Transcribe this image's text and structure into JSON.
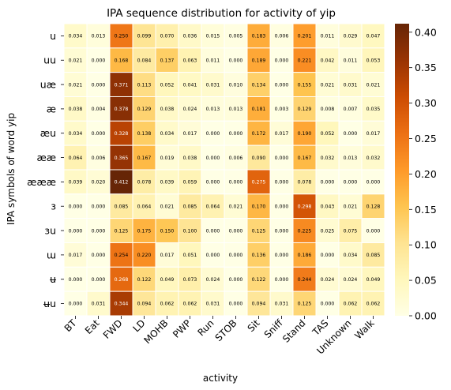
{
  "chart_data": {
    "type": "heatmap",
    "title": "IPA sequence distribution for activity of yip",
    "xlabel": "activity",
    "ylabel": "IPA symbols of word yip",
    "colormap": "YlOrBr",
    "vmin": 0.0,
    "vmax": 0.412,
    "colorbar_ticks": [
      "0.00",
      "0.05",
      "0.10",
      "0.15",
      "0.20",
      "0.25",
      "0.30",
      "0.35",
      "0.40"
    ],
    "columns": [
      "BT",
      "Eat",
      "FWD",
      "LD",
      "MOHB",
      "PWP",
      "Run",
      "STOB",
      "Sit",
      "Sniff",
      "Stand",
      "TAS",
      "Unknown",
      "Walk"
    ],
    "rows": [
      "u",
      "uu",
      "uæ",
      "æ",
      "æu",
      "ææ",
      "æææ",
      "ɜ",
      "ɜu",
      "ɯ",
      "ʉ",
      "ʉu"
    ],
    "values": [
      [
        0.034,
        0.013,
        0.25,
        0.099,
        0.07,
        0.036,
        0.015,
        0.005,
        0.183,
        0.006,
        0.201,
        0.011,
        0.029,
        0.047
      ],
      [
        0.021,
        0.0,
        0.168,
        0.084,
        0.137,
        0.063,
        0.011,
        0.0,
        0.189,
        0.0,
        0.221,
        0.042,
        0.011,
        0.053
      ],
      [
        0.021,
        0.0,
        0.371,
        0.113,
        0.052,
        0.041,
        0.031,
        0.01,
        0.134,
        0.0,
        0.155,
        0.021,
        0.031,
        0.021
      ],
      [
        0.038,
        0.004,
        0.378,
        0.129,
        0.038,
        0.024,
        0.013,
        0.013,
        0.181,
        0.003,
        0.129,
        0.008,
        0.007,
        0.035
      ],
      [
        0.034,
        0.0,
        0.328,
        0.138,
        0.034,
        0.017,
        0.0,
        0.0,
        0.172,
        0.017,
        0.19,
        0.052,
        0.0,
        0.017
      ],
      [
        0.064,
        0.006,
        0.365,
        0.167,
        0.019,
        0.038,
        0.0,
        0.006,
        0.09,
        0.0,
        0.167,
        0.032,
        0.013,
        0.032
      ],
      [
        0.039,
        0.02,
        0.412,
        0.078,
        0.039,
        0.059,
        0.0,
        0.0,
        0.275,
        0.0,
        0.078,
        0.0,
        0.0,
        0.0
      ],
      [
        0.0,
        0.0,
        0.085,
        0.064,
        0.021,
        0.085,
        0.064,
        0.021,
        0.17,
        0.0,
        0.298,
        0.043,
        0.021,
        0.128
      ],
      [
        0.0,
        0.0,
        0.125,
        0.175,
        0.15,
        0.1,
        0.0,
        0.0,
        0.125,
        0.0,
        0.225,
        0.025,
        0.075,
        0.0
      ],
      [
        0.017,
        0.0,
        0.254,
        0.22,
        0.017,
        0.051,
        0.0,
        0.0,
        0.136,
        0.0,
        0.186,
        0.0,
        0.034,
        0.085
      ],
      [
        0.0,
        0.0,
        0.268,
        0.122,
        0.049,
        0.073,
        0.024,
        0.0,
        0.122,
        0.0,
        0.244,
        0.024,
        0.024,
        0.049
      ],
      [
        0.0,
        0.031,
        0.344,
        0.094,
        0.062,
        0.062,
        0.031,
        0.0,
        0.094,
        0.031,
        0.125,
        0.0,
        0.062,
        0.062
      ]
    ]
  }
}
